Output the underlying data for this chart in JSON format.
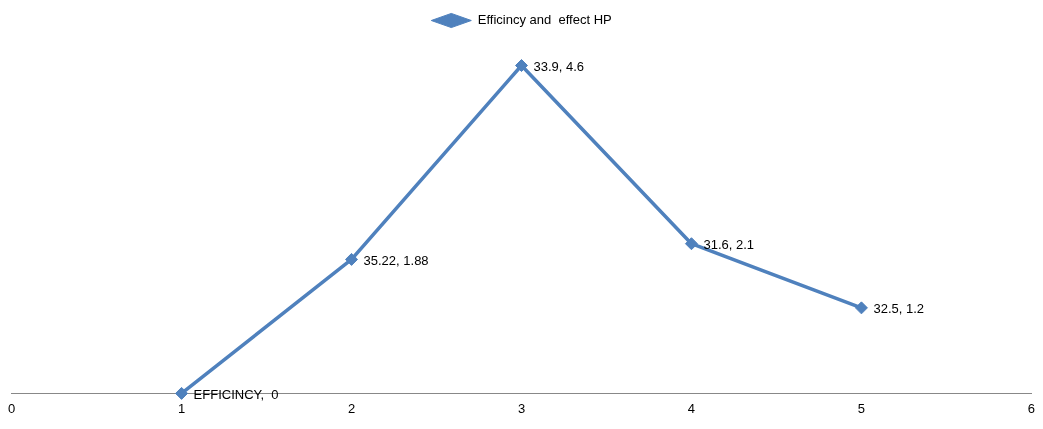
{
  "chart_data": {
    "type": "line",
    "x": [
      1,
      2,
      3,
      4,
      5
    ],
    "series": [
      {
        "name": "Efficincy and  effect HP",
        "color": "#4f81bd",
        "values": [
          0,
          1.88,
          4.6,
          2.1,
          1.2
        ],
        "value_labels": [
          "EFFICINCY,  0",
          "35.22, 1.88",
          "33.9, 4.6",
          "31.6, 2.1",
          "32.5, 1.2"
        ]
      }
    ],
    "xlim": [
      0,
      6
    ],
    "xticks": [
      0,
      1,
      2,
      3,
      4,
      5,
      6
    ],
    "tick_labels": "x",
    "grid": false,
    "legend": "top",
    "marker": "diamond",
    "line_style": "solid"
  }
}
